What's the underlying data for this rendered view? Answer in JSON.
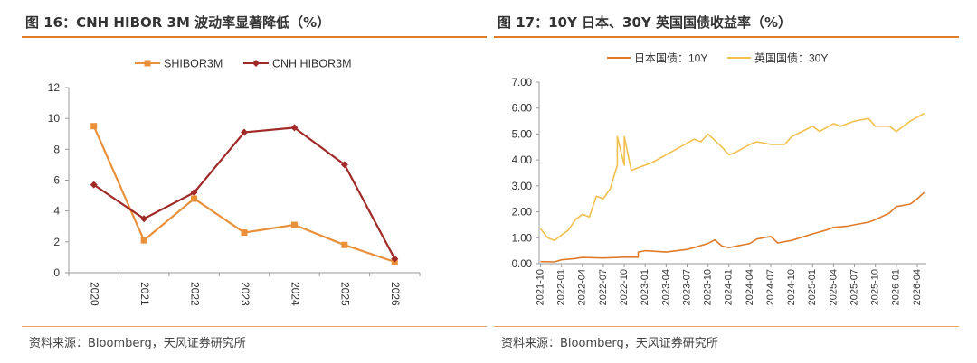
{
  "figures": [
    {
      "title": "图 16：CNH HIBOR 3M 波动率显著降低（%）",
      "source": "资料来源：Bloomberg，天风证券研究所"
    },
    {
      "title": "图 17：10Y 日本、30Y 英国国债收益率（%）",
      "source": "资料来源：Bloomberg，天风证券研究所"
    }
  ],
  "colors": {
    "accent": "#e07b2a",
    "shibor": "#e8903a",
    "cnh": "#a02a28",
    "jp10": "#e07b2a",
    "uk30": "#f2c04d"
  },
  "chart_data": [
    {
      "type": "line",
      "categories": [
        "2020",
        "2021",
        "2022",
        "2023",
        "2024",
        "2025",
        "2026"
      ],
      "ylim": [
        0,
        12
      ],
      "yticks": [
        "0",
        "2",
        "4",
        "6",
        "8",
        "10",
        "12"
      ],
      "grid": false,
      "legend_position": "top",
      "series": [
        {
          "name": "SHIBOR3M",
          "values": [
            9.5,
            2.1,
            4.8,
            2.6,
            3.1,
            1.8,
            0.7
          ]
        },
        {
          "name": "CNH HIBOR3M",
          "values": [
            5.7,
            3.5,
            5.2,
            9.1,
            9.4,
            7.0,
            0.9
          ]
        }
      ]
    },
    {
      "type": "line",
      "xlabels": [
        "2021-10",
        "2022-01",
        "2022-04",
        "2022-07",
        "2022-10",
        "2023-01",
        "2023-04",
        "2023-07",
        "2023-10",
        "2024-01",
        "2024-04",
        "2024-07",
        "2024-10",
        "2025-01",
        "2025-04",
        "2025-07",
        "2025-10",
        "2026-01",
        "2026-04"
      ],
      "ylim": [
        0,
        7
      ],
      "yticks": [
        "0.00",
        "1.00",
        "2.00",
        "3.00",
        "4.00",
        "5.00",
        "6.00",
        "7.00"
      ],
      "grid": false,
      "legend_position": "top",
      "series": [
        {
          "name": "日本国债：10Y",
          "x": [
            "2021-10",
            "2021-12",
            "2022-01",
            "2022-03",
            "2022-04",
            "2022-07",
            "2022-10",
            "2022-12",
            "2022-12",
            "2023-01",
            "2023-04",
            "2023-07",
            "2023-08",
            "2023-10",
            "2023-11",
            "2023-12",
            "2024-01",
            "2024-04",
            "2024-05",
            "2024-07",
            "2024-08",
            "2024-10",
            "2025-01",
            "2025-03",
            "2025-04",
            "2025-06",
            "2025-07",
            "2025-09",
            "2025-10",
            "2025-12",
            "2026-01",
            "2026-03",
            "2026-04",
            "2026-05"
          ],
          "values": [
            0.08,
            0.07,
            0.15,
            0.2,
            0.24,
            0.22,
            0.25,
            0.25,
            0.45,
            0.5,
            0.45,
            0.55,
            0.62,
            0.78,
            0.92,
            0.68,
            0.62,
            0.78,
            0.95,
            1.05,
            0.8,
            0.9,
            1.15,
            1.3,
            1.4,
            1.45,
            1.5,
            1.6,
            1.7,
            1.95,
            2.2,
            2.3,
            2.5,
            2.75
          ]
        },
        {
          "name": "英国国债：30Y",
          "x": [
            "2021-10",
            "2021-11",
            "2021-12",
            "2022-01",
            "2022-02",
            "2022-03",
            "2022-04",
            "2022-05",
            "2022-06",
            "2022-07",
            "2022-08",
            "2022-09",
            "2022-09",
            "2022-10",
            "2022-10",
            "2022-11",
            "2022-12",
            "2023-01",
            "2023-02",
            "2023-04",
            "2023-06",
            "2023-08",
            "2023-09",
            "2023-10",
            "2023-12",
            "2024-01",
            "2024-02",
            "2024-04",
            "2024-05",
            "2024-07",
            "2024-09",
            "2024-10",
            "2025-01",
            "2025-02",
            "2025-04",
            "2025-05",
            "2025-07",
            "2025-09",
            "2025-10",
            "2025-12",
            "2026-01",
            "2026-03",
            "2026-05"
          ],
          "values": [
            1.35,
            1.0,
            0.9,
            1.1,
            1.3,
            1.7,
            1.9,
            1.8,
            2.6,
            2.5,
            2.9,
            3.8,
            4.9,
            3.8,
            4.9,
            3.6,
            3.7,
            3.8,
            3.9,
            4.2,
            4.5,
            4.8,
            4.7,
            5.0,
            4.5,
            4.2,
            4.3,
            4.6,
            4.7,
            4.6,
            4.6,
            4.9,
            5.3,
            5.1,
            5.4,
            5.3,
            5.5,
            5.6,
            5.3,
            5.3,
            5.1,
            5.5,
            5.8
          ]
        }
      ]
    }
  ]
}
